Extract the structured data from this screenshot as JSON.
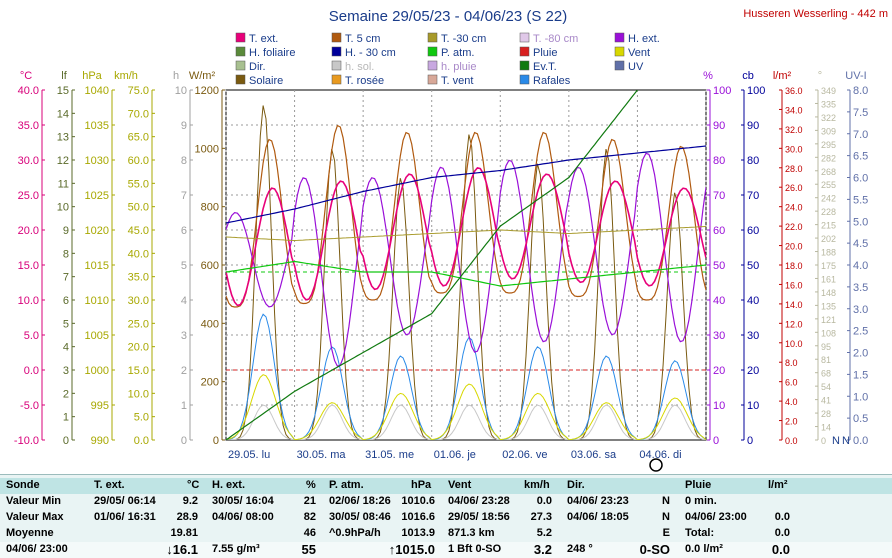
{
  "header": {
    "title": "Semaine 29/05/23 - 04/06/23 (S 22)",
    "station": "Husseren Wesserling - 442 m"
  },
  "legend": [
    {
      "label": "T. ext.",
      "color": "#e8007a"
    },
    {
      "label": "T. 5 cm",
      "color": "#b05a10"
    },
    {
      "label": "T. -30 cm",
      "color": "#a89a2a"
    },
    {
      "label": "T. -80 cm",
      "color": "#e0c8e8"
    },
    {
      "label": "H. ext.",
      "color": "#9a10d8"
    },
    {
      "label": "H. foliaire",
      "color": "#5a8a3a"
    },
    {
      "label": "H. - 30 cm",
      "color": "#00009a"
    },
    {
      "label": "P. atm.",
      "color": "#10c810"
    },
    {
      "label": "Pluie",
      "color": "#d82020"
    },
    {
      "label": "Vent",
      "color": "#d8d800"
    },
    {
      "label": "Dir.",
      "color": "#a8c090"
    },
    {
      "label": "h. sol.",
      "color": "#c8c8c8"
    },
    {
      "label": "h. pluie",
      "color": "#c8a8e0"
    },
    {
      "label": "Ev.T.",
      "color": "#107a10"
    },
    {
      "label": "UV",
      "color": "#6070a8"
    },
    {
      "label": "Solaire",
      "color": "#7a5a10"
    },
    {
      "label": "T. rosée",
      "color": "#e89a20"
    },
    {
      "label": "T. vent",
      "color": "#d8a898"
    },
    {
      "label": "Rafales",
      "color": "#2a8ae8"
    }
  ],
  "axes_units": {
    "temp": "°C",
    "leaf": "lf",
    "press": "hPa",
    "wind": "km/h",
    "hours": "h",
    "solar": "W/m²",
    "percent": "%",
    "cb": "cb",
    "rain": "l/m²",
    "dir": "°",
    "uv": "UV-I"
  },
  "axis_ticks": {
    "temp": [
      "40.0",
      "35.0",
      "30.0",
      "25.0",
      "20.0",
      "15.0",
      "10.0",
      "5.0",
      "0.0",
      "-5.0",
      "-10.0"
    ],
    "leaf": [
      "15",
      "14",
      "13",
      "12",
      "11",
      "10",
      "9",
      "8",
      "7",
      "6",
      "5",
      "4",
      "3",
      "2",
      "1",
      "0"
    ],
    "press": [
      "1040",
      "1035",
      "1030",
      "1025",
      "1020",
      "1015",
      "1010",
      "1005",
      "1000",
      "995",
      "990"
    ],
    "wind": [
      "75.0",
      "70.0",
      "65.0",
      "60.0",
      "55.0",
      "50.0",
      "45.0",
      "40.0",
      "35.0",
      "30.0",
      "25.0",
      "20.0",
      "15.0",
      "10.0",
      "5.0",
      "0.0"
    ],
    "hours": [
      "10",
      "9",
      "8",
      "7",
      "6",
      "5",
      "4",
      "3",
      "2",
      "1",
      "0"
    ],
    "solar": [
      "1200",
      "1000",
      "800",
      "600",
      "400",
      "200",
      "0"
    ],
    "percent": [
      "100",
      "90",
      "80",
      "70",
      "60",
      "50",
      "40",
      "30",
      "20",
      "10",
      "0"
    ],
    "cb": [
      "100",
      "90",
      "80",
      "70",
      "60",
      "50",
      "40",
      "30",
      "20",
      "10",
      "0"
    ],
    "rain": [
      "36.0",
      "34.0",
      "32.0",
      "30.0",
      "28.0",
      "26.0",
      "24.0",
      "22.0",
      "20.0",
      "18.0",
      "16.0",
      "14.0",
      "12.0",
      "10.0",
      "8.0",
      "6.0",
      "4.0",
      "2.0",
      "0.0"
    ],
    "dir": [
      "349",
      "335",
      "322",
      "309",
      "295",
      "282",
      "268",
      "255",
      "242",
      "228",
      "215",
      "202",
      "188",
      "175",
      "161",
      "148",
      "135",
      "121",
      "108",
      "95",
      "81",
      "68",
      "54",
      "41",
      "28",
      "14",
      "0"
    ],
    "dir_markers": [
      "N",
      "N"
    ],
    "uv": [
      "8.0",
      "7.5",
      "7.0",
      "6.5",
      "6.0",
      "5.5",
      "5.0",
      "4.5",
      "4.0",
      "3.5",
      "3.0",
      "2.5",
      "2.0",
      "1.5",
      "1.0",
      "0.5",
      "0.0"
    ]
  },
  "x_days": [
    "29.05. lu",
    "30.05. ma",
    "31.05. me",
    "01.06. je",
    "02.06. ve",
    "03.06. sa",
    "04.06. di"
  ],
  "summary": {
    "headers": {
      "sonde": "Sonde",
      "text": "T. ext.",
      "text_u": "°C",
      "hext": "H. ext.",
      "hext_u": "%",
      "patm": "P. atm.",
      "patm_u": "hPa",
      "vent": "Vent",
      "vent_u": "km/h",
      "dir": "Dir.",
      "pluie": "Pluie",
      "pluie_u": "l/m²"
    },
    "rows": [
      {
        "label": "Valeur Min",
        "t_time": "29/05/ 06:14",
        "t_val": "9.2",
        "h_time": "30/05/ 16:04",
        "h_val": "21",
        "p_time": "02/06/ 18:26",
        "p_val": "1010.6",
        "v_time": "04/06/ 23:28",
        "v_val": "0.0",
        "d_time": "04/06/ 23:23",
        "d_val": "N",
        "r_time": "0 min.",
        "r_val": ""
      },
      {
        "label": "Valeur Max",
        "t_time": "01/06/ 16:31",
        "t_val": "28.9",
        "h_time": "04/06/ 08:00",
        "h_val": "82",
        "p_time": "30/05/ 08:46",
        "p_val": "1016.6",
        "v_time": "29/05/ 18:56",
        "v_val": "27.3",
        "d_time": "04/06/ 18:05",
        "d_val": "N",
        "r_time": "04/06/ 23:00",
        "r_val": "0.0"
      },
      {
        "label": "Moyenne",
        "t_time": "",
        "t_val": "19.81",
        "h_time": "",
        "h_val": "46",
        "p_time": "^0.9hPa/h",
        "p_val": "1013.9",
        "v_time": "871.3 km",
        "v_val": "5.2",
        "d_time": "",
        "d_val": "E",
        "r_time": "Total:",
        "r_val": "0.0"
      },
      {
        "label": "04/06/ 23:00",
        "t_time": "",
        "t_val": "↓16.1",
        "h_time": "7.55 g/m³",
        "h_val": "55",
        "p_time": "",
        "p_val": "↑1015.0",
        "v_time": "1 Bft 0-SO",
        "v_val": "3.2",
        "d_time": "248 °",
        "d_val": "0-SO",
        "r_time": "0.0 l/m²",
        "r_val": "0.0"
      }
    ]
  },
  "chart_data": {
    "type": "line",
    "title": "Semaine 29/05/23 - 04/06/23 (S 22)",
    "x": [
      "29.05. lu",
      "30.05. ma",
      "31.05. me",
      "01.06. je",
      "02.06. ve",
      "03.06. sa",
      "04.06. di"
    ],
    "axes": {
      "temp_c": [
        -10,
        40
      ],
      "leaf": [
        0,
        15
      ],
      "press_hpa": [
        990,
        1040
      ],
      "wind_kmh": [
        0,
        75
      ],
      "hours": [
        0,
        10
      ],
      "solar_wm2": [
        0,
        1200
      ],
      "percent": [
        0,
        100
      ],
      "cb": [
        0,
        100
      ],
      "rain_lm2": [
        0,
        36
      ],
      "dir_deg": [
        0,
        349
      ],
      "uv": [
        0,
        8
      ]
    },
    "grid": true,
    "series": [
      {
        "name": "T. ext.",
        "color": "#e8007a",
        "axis": "temp_c",
        "min": 9.2,
        "max": 28.9,
        "daily_min": [
          9.2,
          10,
          11.5,
          12,
          13,
          12.5,
          12
        ],
        "daily_max": [
          26,
          27,
          28,
          28.9,
          28,
          27,
          26
        ]
      },
      {
        "name": "T. 5 cm",
        "color": "#b05a10",
        "axis": "temp_c",
        "daily_min": [
          9,
          9.5,
          10,
          11,
          11,
          10.5,
          10
        ],
        "daily_max": [
          33,
          35,
          34,
          34,
          34,
          33,
          32
        ]
      },
      {
        "name": "T. -30 cm",
        "color": "#a89a2a",
        "axis": "temp_c",
        "values": [
          19,
          18.5,
          19,
          19.5,
          20,
          19.5,
          20
        ]
      },
      {
        "name": "H. ext.",
        "color": "#9a10d8",
        "axis": "percent",
        "daily_min": [
          38,
          21,
          30,
          25,
          28,
          30,
          28
        ],
        "daily_max": [
          65,
          75,
          75,
          78,
          80,
          78,
          82
        ]
      },
      {
        "name": "H. - 30 cm",
        "color": "#00009a",
        "axis": "cb",
        "values": [
          62,
          66,
          71,
          75,
          77,
          80,
          82
        ]
      },
      {
        "name": "P. atm.",
        "color": "#10c810",
        "axis": "press_hpa",
        "values": [
          1014,
          1015.5,
          1014,
          1014,
          1012,
          1013,
          1014
        ]
      },
      {
        "name": "Vent",
        "color": "#d8d800",
        "axis": "wind_kmh",
        "daily_max": [
          14,
          8,
          10,
          12,
          10,
          8,
          9
        ]
      },
      {
        "name": "Rafales",
        "color": "#2a8ae8",
        "axis": "wind_kmh",
        "daily_max": [
          27,
          20,
          18,
          22,
          20,
          18,
          17
        ]
      },
      {
        "name": "Ev.T.",
        "color": "#107a10",
        "axis": "rain_lm2",
        "values": [
          0,
          5,
          9,
          13,
          22,
          27,
          36
        ]
      },
      {
        "name": "Solaire",
        "color": "#7a5a10",
        "axis": "solar_wm2",
        "daily_max": [
          1150,
          1000,
          900,
          1050,
          950,
          1000,
          850
        ]
      },
      {
        "name": "h. sol.",
        "color": "#c8c8c8",
        "axis": "hours",
        "daily_max": [
          1,
          1,
          1,
          1,
          1,
          1,
          1
        ]
      }
    ]
  }
}
